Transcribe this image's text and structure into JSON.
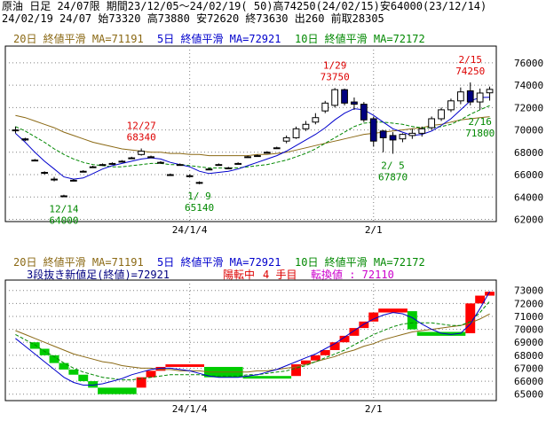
{
  "header": {
    "line1": "原油 日足 24/07限 期間23/12/05～24/02/19( 50)高74250(24/02/15)安64000(23/12/14)",
    "line2": "24/02/19 24/07 始73320 高73880 安72620 終73630 出260 前取28305"
  },
  "colors": {
    "ma20": "#8B6914",
    "ma5": "#0000CC",
    "ma10": "#008800",
    "up_candle": "#FFFFFF",
    "down_candle": "#000080",
    "bull_brick": "#FF0000",
    "bear_brick": "#00CC00",
    "high_label": "#DD0000",
    "low_label": "#008800",
    "grid": "#808080"
  },
  "chart_data": [
    {
      "type": "candlestick",
      "legend": [
        {
          "label": "20日 終値平滑 MA=71191",
          "color_key": "ma20"
        },
        {
          "label": "5日 終値平滑 MA=72921",
          "color_key": "ma5"
        },
        {
          "label": "10日 終値平滑 MA=72172",
          "color_key": "ma10"
        }
      ],
      "y_ticks": [
        62000,
        64000,
        66000,
        68000,
        70000,
        72000,
        74000,
        76000
      ],
      "ylim": [
        61800,
        77500
      ],
      "x_ticks": [
        {
          "index": 18,
          "label": "24/1/4"
        },
        {
          "index": 37,
          "label": "2/1"
        }
      ],
      "bars": [
        {
          "o": 70000,
          "h": 70300,
          "l": 69700,
          "c": 70000
        },
        {
          "o": 69200,
          "h": 69300,
          "l": 69000,
          "c": 69100
        },
        {
          "o": 67300,
          "h": 67400,
          "l": 67200,
          "c": 67300
        },
        {
          "o": 66200,
          "h": 66300,
          "l": 66000,
          "c": 66200
        },
        {
          "o": 65600,
          "h": 65800,
          "l": 65400,
          "c": 65600
        },
        {
          "o": 64100,
          "h": 64200,
          "l": 64000,
          "c": 64100
        },
        {
          "o": 65500,
          "h": 65600,
          "l": 65400,
          "c": 65500
        },
        {
          "o": 66300,
          "h": 66400,
          "l": 66200,
          "c": 66300
        },
        {
          "o": 66700,
          "h": 66800,
          "l": 66600,
          "c": 66700
        },
        {
          "o": 66900,
          "h": 67000,
          "l": 66800,
          "c": 66900
        },
        {
          "o": 67000,
          "h": 67100,
          "l": 66900,
          "c": 67000
        },
        {
          "o": 67200,
          "h": 67300,
          "l": 67100,
          "c": 67200
        },
        {
          "o": 67500,
          "h": 67600,
          "l": 67400,
          "c": 67500
        },
        {
          "o": 67800,
          "h": 68340,
          "l": 67700,
          "c": 68100
        },
        {
          "o": 67600,
          "h": 67700,
          "l": 67500,
          "c": 67600
        },
        {
          "o": 67100,
          "h": 67200,
          "l": 67000,
          "c": 67100
        },
        {
          "o": 66000,
          "h": 66100,
          "l": 65900,
          "c": 66000
        },
        {
          "o": 66900,
          "h": 67000,
          "l": 66800,
          "c": 66900
        },
        {
          "o": 65900,
          "h": 66000,
          "l": 65800,
          "c": 65900
        },
        {
          "o": 65300,
          "h": 65400,
          "l": 65140,
          "c": 65300
        },
        {
          "o": 66500,
          "h": 66600,
          "l": 66400,
          "c": 66500
        },
        {
          "o": 66900,
          "h": 67000,
          "l": 66800,
          "c": 66900
        },
        {
          "o": 66600,
          "h": 66700,
          "l": 66500,
          "c": 66600
        },
        {
          "o": 67000,
          "h": 67100,
          "l": 66900,
          "c": 67000
        },
        {
          "o": 67600,
          "h": 67700,
          "l": 67500,
          "c": 67600
        },
        {
          "o": 67700,
          "h": 67800,
          "l": 67600,
          "c": 67700
        },
        {
          "o": 68000,
          "h": 68100,
          "l": 67900,
          "c": 68000
        },
        {
          "o": 68400,
          "h": 68500,
          "l": 68300,
          "c": 68400
        },
        {
          "o": 69000,
          "h": 69500,
          "l": 68800,
          "c": 69300
        },
        {
          "o": 69300,
          "h": 70300,
          "l": 69200,
          "c": 70100
        },
        {
          "o": 70100,
          "h": 70800,
          "l": 69900,
          "c": 70500
        },
        {
          "o": 70700,
          "h": 71500,
          "l": 70500,
          "c": 71100
        },
        {
          "o": 71700,
          "h": 72600,
          "l": 71500,
          "c": 72400
        },
        {
          "o": 72200,
          "h": 73750,
          "l": 72000,
          "c": 73600
        },
        {
          "o": 73600,
          "h": 73700,
          "l": 72200,
          "c": 72400
        },
        {
          "o": 72500,
          "h": 72900,
          "l": 71800,
          "c": 72300
        },
        {
          "o": 72300,
          "h": 72500,
          "l": 70700,
          "c": 70900
        },
        {
          "o": 71000,
          "h": 71200,
          "l": 68500,
          "c": 69000
        },
        {
          "o": 69900,
          "h": 70000,
          "l": 68000,
          "c": 69300
        },
        {
          "o": 69500,
          "h": 69800,
          "l": 67870,
          "c": 69100
        },
        {
          "o": 69200,
          "h": 69700,
          "l": 68900,
          "c": 69600
        },
        {
          "o": 69500,
          "h": 70100,
          "l": 69200,
          "c": 69700
        },
        {
          "o": 69700,
          "h": 70300,
          "l": 69400,
          "c": 70100
        },
        {
          "o": 70200,
          "h": 71200,
          "l": 70000,
          "c": 71000
        },
        {
          "o": 71000,
          "h": 72000,
          "l": 70800,
          "c": 71800
        },
        {
          "o": 71800,
          "h": 72800,
          "l": 71600,
          "c": 72600
        },
        {
          "o": 72600,
          "h": 73800,
          "l": 72300,
          "c": 73400
        },
        {
          "o": 73500,
          "h": 74250,
          "l": 72200,
          "c": 72500
        },
        {
          "o": 72500,
          "h": 73700,
          "l": 71800,
          "c": 73300
        },
        {
          "o": 73320,
          "h": 73880,
          "l": 72620,
          "c": 73630
        }
      ],
      "ma5": [
        69700,
        68900,
        68000,
        67200,
        66500,
        65800,
        65600,
        65700,
        66100,
        66500,
        66800,
        67000,
        67200,
        67400,
        67500,
        67400,
        67100,
        66900,
        66700,
        66300,
        66100,
        66200,
        66300,
        66500,
        66800,
        67100,
        67400,
        67700,
        68100,
        68600,
        69100,
        69600,
        70200,
        70900,
        71500,
        71900,
        71800,
        71300,
        70700,
        70100,
        69800,
        69500,
        69600,
        69900,
        70400,
        71000,
        71800,
        72600,
        72900,
        72921
      ],
      "ma10": [
        70300,
        69900,
        69400,
        68900,
        68300,
        67800,
        67400,
        67100,
        66900,
        66800,
        66700,
        66700,
        66800,
        66900,
        67000,
        67000,
        66900,
        66900,
        66800,
        66700,
        66600,
        66600,
        66600,
        66600,
        66700,
        66800,
        66900,
        67100,
        67300,
        67600,
        67900,
        68300,
        68800,
        69300,
        69800,
        70300,
        70600,
        70700,
        70700,
        70600,
        70500,
        70300,
        70200,
        70200,
        70300,
        70500,
        70900,
        71400,
        71800,
        72172
      ],
      "ma20": [
        71300,
        71100,
        70800,
        70500,
        70200,
        69800,
        69500,
        69200,
        68900,
        68700,
        68500,
        68300,
        68200,
        68100,
        68000,
        68000,
        67900,
        67900,
        67800,
        67800,
        67700,
        67700,
        67700,
        67700,
        67700,
        67800,
        67800,
        67900,
        68000,
        68200,
        68400,
        68600,
        68800,
        69000,
        69200,
        69400,
        69600,
        69700,
        69800,
        69900,
        70000,
        70100,
        70200,
        70400,
        70500,
        70700,
        70900,
        71000,
        71100,
        71191
      ],
      "annotations": [
        {
          "index": 13,
          "date": "12/27",
          "value": "68340",
          "kind": "high"
        },
        {
          "index": 5,
          "date": "12/14",
          "value": "64000",
          "kind": "low"
        },
        {
          "index": 19,
          "date": "1/ 9",
          "value": "65140",
          "kind": "low"
        },
        {
          "index": 33,
          "date": "1/29",
          "value": "73750",
          "kind": "high"
        },
        {
          "index": 39,
          "date": "2/ 5",
          "value": "67870",
          "kind": "low"
        },
        {
          "index": 47,
          "date": "2/15",
          "value": "74250",
          "kind": "high"
        },
        {
          "index": 48,
          "date": "2/16",
          "value": "71800",
          "kind": "low"
        }
      ]
    },
    {
      "type": "three-line-break",
      "legend": [
        {
          "label": "20日 終値平滑 MA=71191",
          "color_key": "ma20"
        },
        {
          "label": "5日 終値平滑 MA=72921",
          "color_key": "ma5"
        },
        {
          "label": "10日 終値平滑 MA=72172",
          "color_key": "ma10"
        }
      ],
      "info": {
        "desc": "3段抜き新値足(終値)=72921",
        "status": "陽転中",
        "count": "4 手目",
        "reversal": "転換値 : 72110"
      },
      "y_ticks": [
        65000,
        66000,
        67000,
        68000,
        69000,
        70000,
        71000,
        72000,
        73000
      ],
      "ylim": [
        64500,
        73800
      ],
      "x_ticks": [
        {
          "index": 18,
          "label": "24/1/4"
        },
        {
          "index": 37,
          "label": "2/1"
        }
      ],
      "bricks": [
        {
          "from": 2,
          "to": 2,
          "lo": 68500,
          "hi": 69000,
          "dir": "down"
        },
        {
          "from": 3,
          "to": 3,
          "lo": 68000,
          "hi": 68500,
          "dir": "down"
        },
        {
          "from": 4,
          "to": 4,
          "lo": 67400,
          "hi": 68000,
          "dir": "down"
        },
        {
          "from": 5,
          "to": 5,
          "lo": 66900,
          "hi": 67400,
          "dir": "down"
        },
        {
          "from": 6,
          "to": 6,
          "lo": 66500,
          "hi": 66900,
          "dir": "down"
        },
        {
          "from": 7,
          "to": 7,
          "lo": 66000,
          "hi": 66500,
          "dir": "down"
        },
        {
          "from": 8,
          "to": 8,
          "lo": 65500,
          "hi": 66000,
          "dir": "down"
        },
        {
          "from": 9,
          "to": 12,
          "lo": 65000,
          "hi": 65500,
          "dir": "down"
        },
        {
          "from": 13,
          "to": 13,
          "lo": 65500,
          "hi": 66300,
          "dir": "up"
        },
        {
          "from": 14,
          "to": 14,
          "lo": 66300,
          "hi": 66800,
          "dir": "up"
        },
        {
          "from": 15,
          "to": 15,
          "lo": 66800,
          "hi": 67100,
          "dir": "up"
        },
        {
          "from": 16,
          "to": 19,
          "lo": 67100,
          "hi": 67300,
          "dir": "up"
        },
        {
          "from": 20,
          "to": 23,
          "lo": 66300,
          "hi": 67100,
          "dir": "down"
        },
        {
          "from": 24,
          "to": 28,
          "lo": 66200,
          "hi": 66400,
          "dir": "down"
        },
        {
          "from": 29,
          "to": 29,
          "lo": 66400,
          "hi": 67300,
          "dir": "up"
        },
        {
          "from": 30,
          "to": 30,
          "lo": 67300,
          "hi": 67600,
          "dir": "up"
        },
        {
          "from": 31,
          "to": 31,
          "lo": 67600,
          "hi": 68000,
          "dir": "up"
        },
        {
          "from": 32,
          "to": 32,
          "lo": 68000,
          "hi": 68400,
          "dir": "up"
        },
        {
          "from": 33,
          "to": 33,
          "lo": 68400,
          "hi": 69000,
          "dir": "up"
        },
        {
          "from": 34,
          "to": 34,
          "lo": 69000,
          "hi": 69500,
          "dir": "up"
        },
        {
          "from": 35,
          "to": 35,
          "lo": 69500,
          "hi": 70100,
          "dir": "up"
        },
        {
          "from": 36,
          "to": 36,
          "lo": 70100,
          "hi": 70600,
          "dir": "up"
        },
        {
          "from": 37,
          "to": 37,
          "lo": 70600,
          "hi": 71300,
          "dir": "up"
        },
        {
          "from": 38,
          "to": 40,
          "lo": 71300,
          "hi": 71600,
          "dir": "up"
        },
        {
          "from": 41,
          "to": 41,
          "lo": 70000,
          "hi": 71400,
          "dir": "down"
        },
        {
          "from": 42,
          "to": 46,
          "lo": 69500,
          "hi": 69800,
          "dir": "down"
        },
        {
          "from": 47,
          "to": 47,
          "lo": 69700,
          "hi": 72000,
          "dir": "up"
        },
        {
          "from": 48,
          "to": 48,
          "lo": 72000,
          "hi": 72600,
          "dir": "up"
        },
        {
          "from": 49,
          "to": 49,
          "lo": 72600,
          "hi": 72900,
          "dir": "up"
        }
      ],
      "ma5": [
        69300,
        68700,
        68100,
        67500,
        66900,
        66300,
        65900,
        65700,
        65700,
        65800,
        66000,
        66200,
        66500,
        66700,
        66900,
        67000,
        67000,
        66900,
        66800,
        66600,
        66400,
        66300,
        66300,
        66300,
        66400,
        66500,
        66700,
        66900,
        67200,
        67500,
        67800,
        68100,
        68500,
        68900,
        69400,
        69900,
        70400,
        70800,
        71100,
        71300,
        71200,
        70900,
        70400,
        70000,
        69700,
        69600,
        69700,
        70400,
        71600,
        72921
      ],
      "ma10": [
        69600,
        69200,
        68800,
        68300,
        67900,
        67400,
        67000,
        66700,
        66500,
        66300,
        66200,
        66100,
        66100,
        66200,
        66300,
        66400,
        66500,
        66500,
        66500,
        66500,
        66400,
        66400,
        66400,
        66400,
        66500,
        66500,
        66600,
        66700,
        66800,
        67000,
        67200,
        67500,
        67800,
        68100,
        68400,
        68800,
        69200,
        69600,
        69900,
        70200,
        70400,
        70500,
        70500,
        70500,
        70400,
        70300,
        70300,
        70600,
        71300,
        72172
      ],
      "ma20": [
        69900,
        69600,
        69300,
        69000,
        68700,
        68400,
        68100,
        67900,
        67700,
        67500,
        67400,
        67200,
        67100,
        67000,
        67000,
        66900,
        66900,
        66800,
        66800,
        66800,
        66700,
        66700,
        66700,
        66700,
        66700,
        66800,
        66800,
        66900,
        67000,
        67100,
        67300,
        67500,
        67700,
        67900,
        68200,
        68400,
        68700,
        68900,
        69200,
        69400,
        69600,
        69800,
        69900,
        70000,
        70100,
        70200,
        70300,
        70500,
        70800,
        71191
      ]
    }
  ]
}
